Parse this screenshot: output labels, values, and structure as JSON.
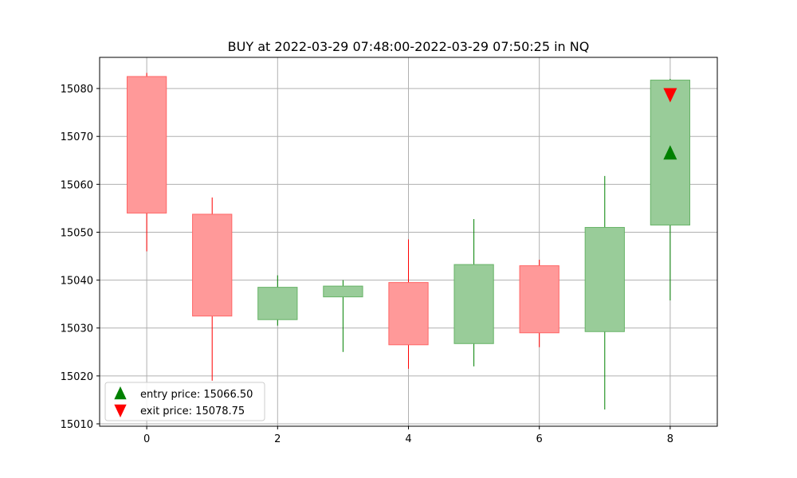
{
  "chart_data": {
    "type": "candlestick",
    "title": "BUY at 2022-03-29 07:48:00-2022-03-29 07:50:25 in NQ",
    "xlabel": "",
    "ylabel": "",
    "xlim": [
      -0.72,
      8.72
    ],
    "ylim": [
      15009.5,
      15086.5
    ],
    "x_ticks": [
      0,
      2,
      4,
      6,
      8
    ],
    "y_ticks": [
      15010,
      15020,
      15030,
      15040,
      15050,
      15060,
      15070,
      15080
    ],
    "grid": true,
    "legend_position": "lower-left",
    "colors": {
      "up_body": "#99cc99",
      "up_edge": "#66b366",
      "up_wick": "#008000",
      "down_body": "#ff9999",
      "down_edge": "#ff6666",
      "down_wick": "#ff0000",
      "entry_marker": "#008000",
      "exit_marker": "#ff0000",
      "grid": "#b0b0b0"
    },
    "candles": [
      {
        "x": 0,
        "open": 15082.5,
        "close": 15054.0,
        "high": 15083.25,
        "low": 15046.0
      },
      {
        "x": 1,
        "open": 15053.75,
        "close": 15032.5,
        "high": 15057.25,
        "low": 15019.0
      },
      {
        "x": 2,
        "open": 15031.75,
        "close": 15038.5,
        "high": 15041.0,
        "low": 15030.5
      },
      {
        "x": 3,
        "open": 15036.5,
        "close": 15038.75,
        "high": 15040.0,
        "low": 15025.0
      },
      {
        "x": 4,
        "open": 15039.5,
        "close": 15026.5,
        "high": 15048.5,
        "low": 15021.5
      },
      {
        "x": 5,
        "open": 15026.75,
        "close": 15043.25,
        "high": 15052.75,
        "low": 15022.0
      },
      {
        "x": 6,
        "open": 15043.0,
        "close": 15029.0,
        "high": 15044.25,
        "low": 15026.0
      },
      {
        "x": 7,
        "open": 15029.25,
        "close": 15051.0,
        "high": 15061.75,
        "low": 15013.0
      },
      {
        "x": 8,
        "open": 15051.5,
        "close": 15081.75,
        "high": 15082.0,
        "low": 15035.75
      }
    ],
    "markers": [
      {
        "name": "entry price: 15066.50",
        "x": 8,
        "y": 15066.5,
        "shape": "triangle-up"
      },
      {
        "name": "exit price: 15078.75",
        "x": 8,
        "y": 15078.75,
        "shape": "triangle-down"
      }
    ]
  }
}
